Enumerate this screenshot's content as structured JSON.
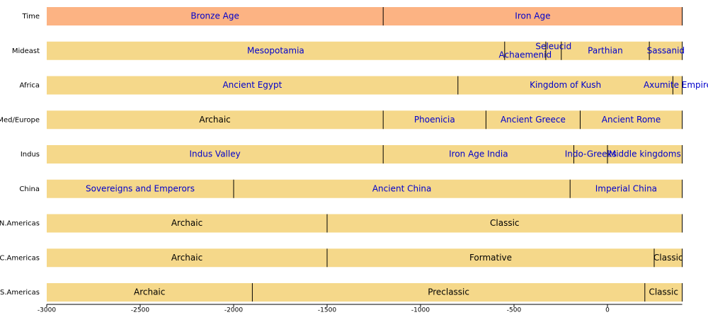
{
  "chart_data": {
    "type": "timeline",
    "xlim": [
      -3000,
      400
    ],
    "xticks": [
      -3000,
      -2500,
      -2000,
      -1500,
      -1000,
      -500,
      0
    ],
    "rows": [
      {
        "name": "Time",
        "color": "#fcb383",
        "periods": [
          {
            "label": "Bronze Age",
            "start": -3000,
            "end": -1200,
            "link": true
          },
          {
            "label": "Iron Age",
            "start": -1200,
            "end": 400,
            "link": true
          }
        ]
      },
      {
        "name": "Mideast",
        "color": "#f5d88a",
        "periods": [
          {
            "label": "Mesopotamia",
            "start": -3000,
            "end": -550,
            "link": true
          },
          {
            "label": "Achaemenid",
            "start": -550,
            "end": -330,
            "link": true
          },
          {
            "label": "Seleucid",
            "start": -330,
            "end": -247,
            "link": true
          },
          {
            "label": "Parthian",
            "start": -247,
            "end": 224,
            "link": true
          },
          {
            "label": "Sassanid",
            "start": 224,
            "end": 400,
            "link": true
          }
        ]
      },
      {
        "name": "Africa",
        "color": "#f5d88a",
        "periods": [
          {
            "label": "Ancient Egypt",
            "start": -3000,
            "end": -800,
            "link": true
          },
          {
            "label": "Kingdom of Kush",
            "start": -800,
            "end": 350,
            "link": true
          },
          {
            "label": "Axumite Empire",
            "start": 350,
            "end": 400,
            "link": true
          }
        ]
      },
      {
        "name": "Med/Europe",
        "color": "#f5d88a",
        "periods": [
          {
            "label": "Archaic",
            "start": -3000,
            "end": -1200,
            "link": false
          },
          {
            "label": "Phoenicia",
            "start": -1200,
            "end": -650,
            "link": true
          },
          {
            "label": "Ancient Greece",
            "start": -650,
            "end": -146,
            "link": true
          },
          {
            "label": "Ancient Rome",
            "start": -146,
            "end": 400,
            "link": true
          }
        ]
      },
      {
        "name": "Indus",
        "color": "#f5d88a",
        "periods": [
          {
            "label": "Indus Valley",
            "start": -3000,
            "end": -1200,
            "link": true
          },
          {
            "label": "Iron Age India",
            "start": -1200,
            "end": -180,
            "link": true
          },
          {
            "label": "Indo-Greeks",
            "start": -180,
            "end": 0,
            "link": true
          },
          {
            "label": "Middle kingdoms",
            "start": 0,
            "end": 400,
            "link": true
          }
        ]
      },
      {
        "name": "China",
        "color": "#f5d88a",
        "periods": [
          {
            "label": "Sovereigns and Emperors",
            "start": -3000,
            "end": -2000,
            "link": true
          },
          {
            "label": "Ancient China",
            "start": -2000,
            "end": -200,
            "link": true
          },
          {
            "label": "Imperial China",
            "start": -200,
            "end": 400,
            "link": true
          }
        ]
      },
      {
        "name": "N.Americas",
        "color": "#f5d88a",
        "periods": [
          {
            "label": "Archaic",
            "start": -3000,
            "end": -1500,
            "link": false
          },
          {
            "label": "Classic",
            "start": -1500,
            "end": 400,
            "link": false
          }
        ]
      },
      {
        "name": "C.Americas",
        "color": "#f5d88a",
        "periods": [
          {
            "label": "Archaic",
            "start": -3000,
            "end": -1500,
            "link": false
          },
          {
            "label": "Formative",
            "start": -1500,
            "end": 250,
            "link": false
          },
          {
            "label": "Classic",
            "start": 250,
            "end": 400,
            "link": false
          }
        ]
      },
      {
        "name": "S.Americas",
        "color": "#f5d88a",
        "periods": [
          {
            "label": "Archaic",
            "start": -3000,
            "end": -1900,
            "link": false
          },
          {
            "label": "Preclassic",
            "start": -1900,
            "end": 200,
            "link": false
          },
          {
            "label": "Classic",
            "start": 200,
            "end": 400,
            "link": false
          }
        ]
      }
    ]
  }
}
